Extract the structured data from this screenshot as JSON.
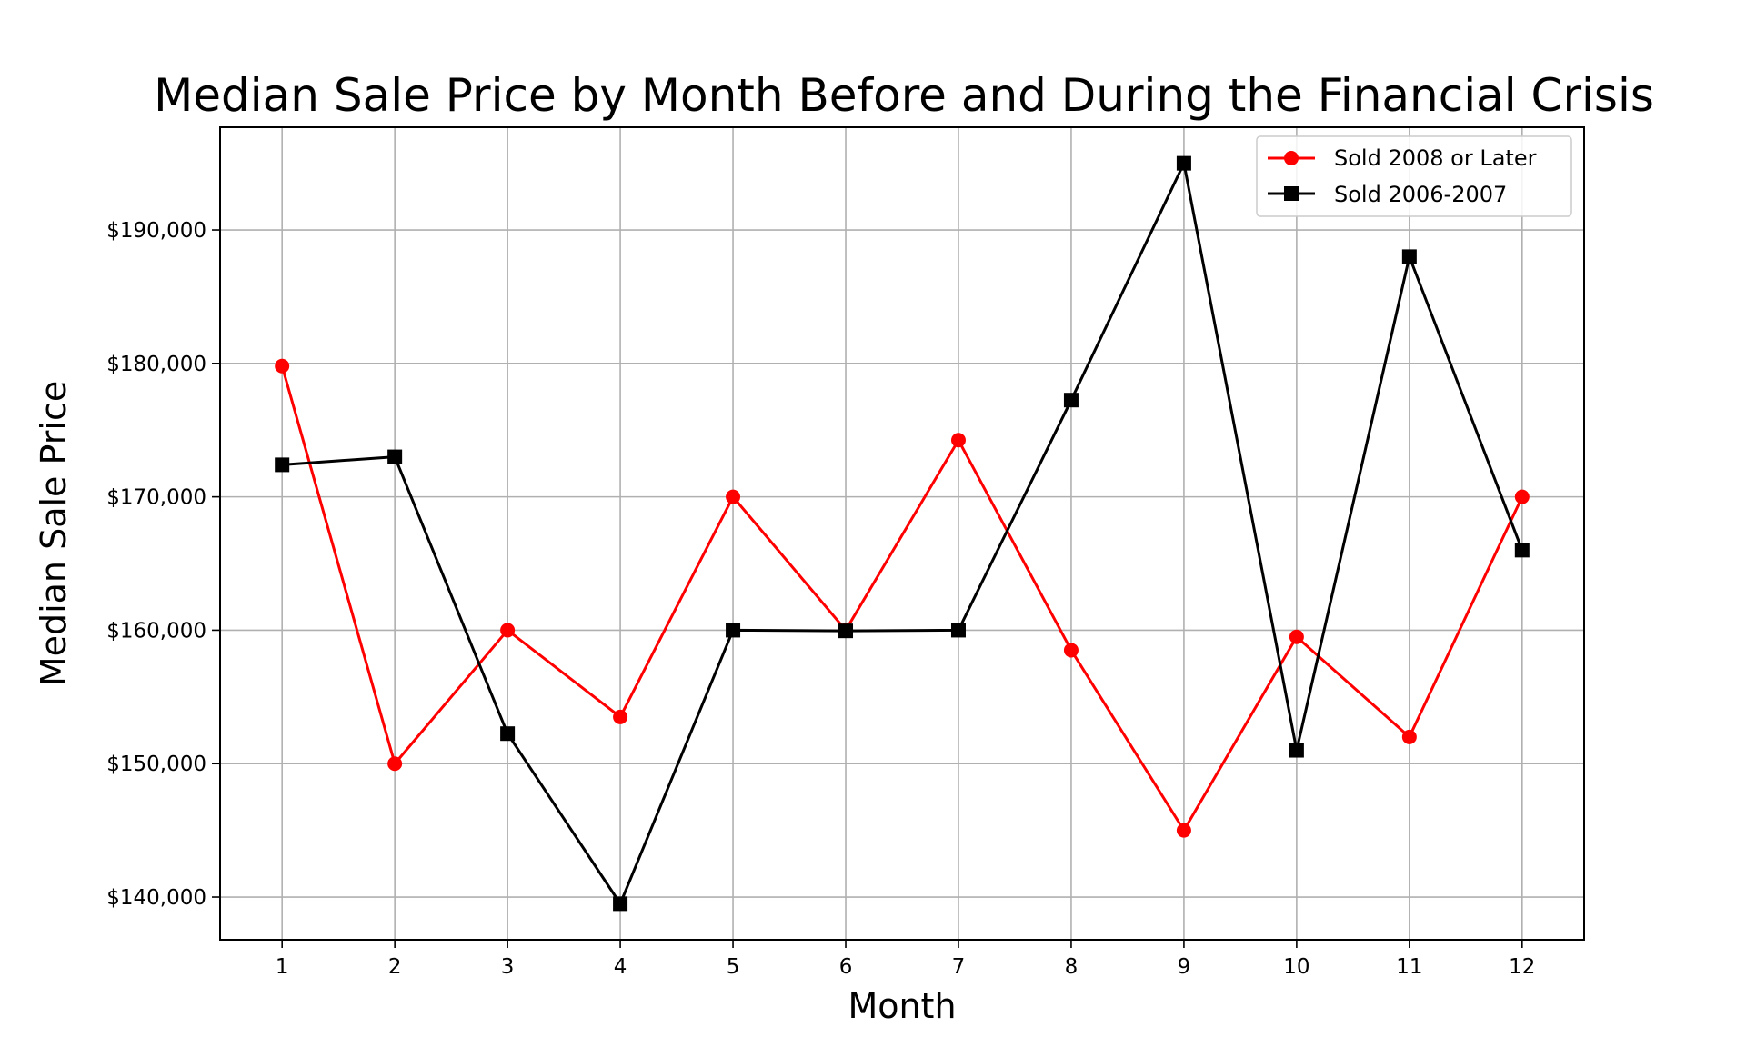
{
  "chart_data": {
    "type": "line",
    "title": "Median Sale Price by Month Before and During the Financial Crisis",
    "xlabel": "Month",
    "ylabel": "Median Sale Price",
    "x": [
      1,
      2,
      3,
      4,
      5,
      6,
      7,
      8,
      9,
      10,
      11,
      12
    ],
    "xlim": [
      0.45,
      12.55
    ],
    "ylim": [
      136800,
      197700
    ],
    "yticks": [
      140000,
      150000,
      160000,
      170000,
      180000,
      190000
    ],
    "ytick_labels": [
      "$140,000",
      "$150,000",
      "$160,000",
      "$170,000",
      "$180,000",
      "$190,000"
    ],
    "xtick_labels": [
      "1",
      "2",
      "3",
      "4",
      "5",
      "6",
      "7",
      "8",
      "9",
      "10",
      "11",
      "12"
    ],
    "grid": true,
    "legend_position": "top-right",
    "series": [
      {
        "name": "Sold 2008 or Later",
        "color": "#ff0000",
        "marker": "circle",
        "values": [
          179800,
          150000,
          160000,
          153500,
          170000,
          160000,
          174250,
          158500,
          145000,
          159500,
          152000,
          170000
        ]
      },
      {
        "name": "Sold 2006-2007",
        "color": "#000000",
        "marker": "square",
        "values": [
          172400,
          173000,
          152250,
          139500,
          160000,
          159950,
          160000,
          177250,
          195000,
          151000,
          188000,
          166000
        ]
      }
    ]
  }
}
